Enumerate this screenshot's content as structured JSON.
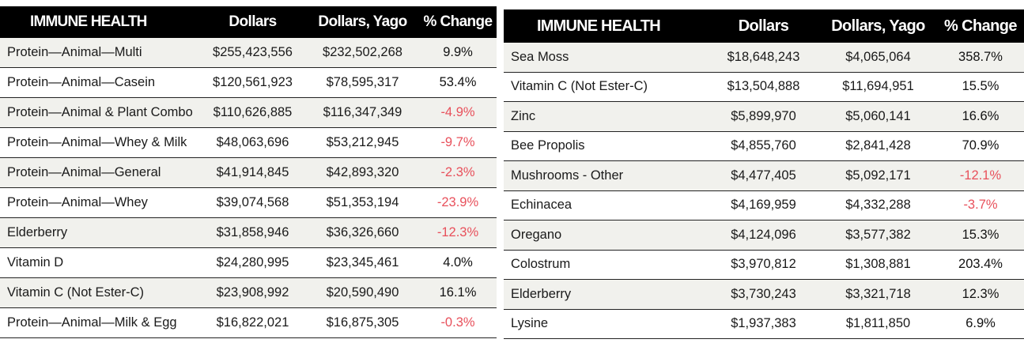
{
  "chart_data": [
    {
      "type": "table",
      "columns": [
        "IMMUNE HEALTH",
        "Dollars",
        "Dollars, Yago",
        "% Change"
      ],
      "rows": [
        {
          "category": "Protein—Animal—Multi",
          "dollars": "$255,423,556",
          "dollars_yago": "$232,502,268",
          "pct_change": "9.9%"
        },
        {
          "category": "Protein—Animal—Casein",
          "dollars": "$120,561,923",
          "dollars_yago": "$78,595,317",
          "pct_change": "53.4%"
        },
        {
          "category": "Protein—Animal & Plant Combo",
          "dollars": "$110,626,885",
          "dollars_yago": "$116,347,349",
          "pct_change": "-4.9%"
        },
        {
          "category": "Protein—Animal—Whey & Milk",
          "dollars": "$48,063,696",
          "dollars_yago": "$53,212,945",
          "pct_change": "-9.7%"
        },
        {
          "category": "Protein—Animal—General",
          "dollars": "$41,914,845",
          "dollars_yago": "$42,893,320",
          "pct_change": "-2.3%"
        },
        {
          "category": "Protein—Animal—Whey",
          "dollars": "$39,074,568",
          "dollars_yago": "$51,353,194",
          "pct_change": "-23.9%"
        },
        {
          "category": "Elderberry",
          "dollars": "$31,858,946",
          "dollars_yago": "$36,326,660",
          "pct_change": "-12.3%"
        },
        {
          "category": "Vitamin D",
          "dollars": "$24,280,995",
          "dollars_yago": "$23,345,461",
          "pct_change": "4.0%"
        },
        {
          "category": "Vitamin C (Not Ester-C)",
          "dollars": "$23,908,992",
          "dollars_yago": "$20,590,490",
          "pct_change": "16.1%"
        },
        {
          "category": "Protein—Animal—Milk & Egg",
          "dollars": "$16,822,021",
          "dollars_yago": "$16,875,305",
          "pct_change": "-0.3%"
        }
      ]
    },
    {
      "type": "table",
      "columns": [
        "IMMUNE HEALTH",
        "Dollars",
        "Dollars, Yago",
        "% Change"
      ],
      "rows": [
        {
          "category": "Sea Moss",
          "dollars": "$18,648,243",
          "dollars_yago": "$4,065,064",
          "pct_change": "358.7%"
        },
        {
          "category": "Vitamin C (Not Ester-C)",
          "dollars": "$13,504,888",
          "dollars_yago": "$11,694,951",
          "pct_change": "15.5%"
        },
        {
          "category": "Zinc",
          "dollars": "$5,899,970",
          "dollars_yago": "$5,060,141",
          "pct_change": "16.6%"
        },
        {
          "category": "Bee Propolis",
          "dollars": "$4,855,760",
          "dollars_yago": "$2,841,428",
          "pct_change": "70.9%"
        },
        {
          "category": "Mushrooms - Other",
          "dollars": "$4,477,405",
          "dollars_yago": "$5,092,171",
          "pct_change": "-12.1%"
        },
        {
          "category": "Echinacea",
          "dollars": "$4,169,959",
          "dollars_yago": "$4,332,288",
          "pct_change": "-3.7%"
        },
        {
          "category": "Oregano",
          "dollars": "$4,124,096",
          "dollars_yago": "$3,577,382",
          "pct_change": "15.3%"
        },
        {
          "category": "Colostrum",
          "dollars": "$3,970,812",
          "dollars_yago": "$1,308,881",
          "pct_change": "203.4%"
        },
        {
          "category": "Elderberry",
          "dollars": "$3,730,243",
          "dollars_yago": "$3,321,718",
          "pct_change": "12.3%"
        },
        {
          "category": "Lysine",
          "dollars": "$1,937,383",
          "dollars_yago": "$1,811,850",
          "pct_change": "6.9%"
        }
      ]
    }
  ],
  "colors": {
    "header_bg": "#000000",
    "header_text": "#ffffff",
    "row_shade": "#f1f1ed",
    "negative": "#e8505b"
  }
}
